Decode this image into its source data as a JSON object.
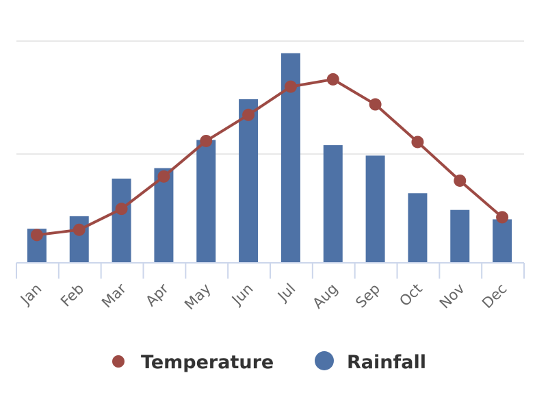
{
  "chart_data": {
    "type": "bar",
    "title": "",
    "xlabel": "",
    "ylabel": "",
    "categories": [
      "Jan",
      "Feb",
      "Mar",
      "Apr",
      "May",
      "Jun",
      "Jul",
      "Aug",
      "Sep",
      "Oct",
      "Nov",
      "Dec"
    ],
    "ylim": [
      0,
      200
    ],
    "grid": true,
    "series": [
      {
        "name": "Rainfall",
        "type": "bar",
        "color": "#4e72a6",
        "values": [
          32,
          44,
          80,
          90,
          117,
          156,
          200,
          112,
          102,
          66,
          50,
          41
        ]
      },
      {
        "name": "Temperature",
        "type": "line",
        "color": "#9d4a44",
        "values": [
          26,
          31,
          51,
          82,
          116,
          141,
          168,
          175,
          151,
          115,
          78,
          43
        ]
      }
    ],
    "legend": {
      "position": "bottom-center",
      "items": [
        {
          "name": "Temperature",
          "marker": "circle"
        },
        {
          "name": "Rainfall",
          "marker": "circle"
        }
      ]
    }
  }
}
